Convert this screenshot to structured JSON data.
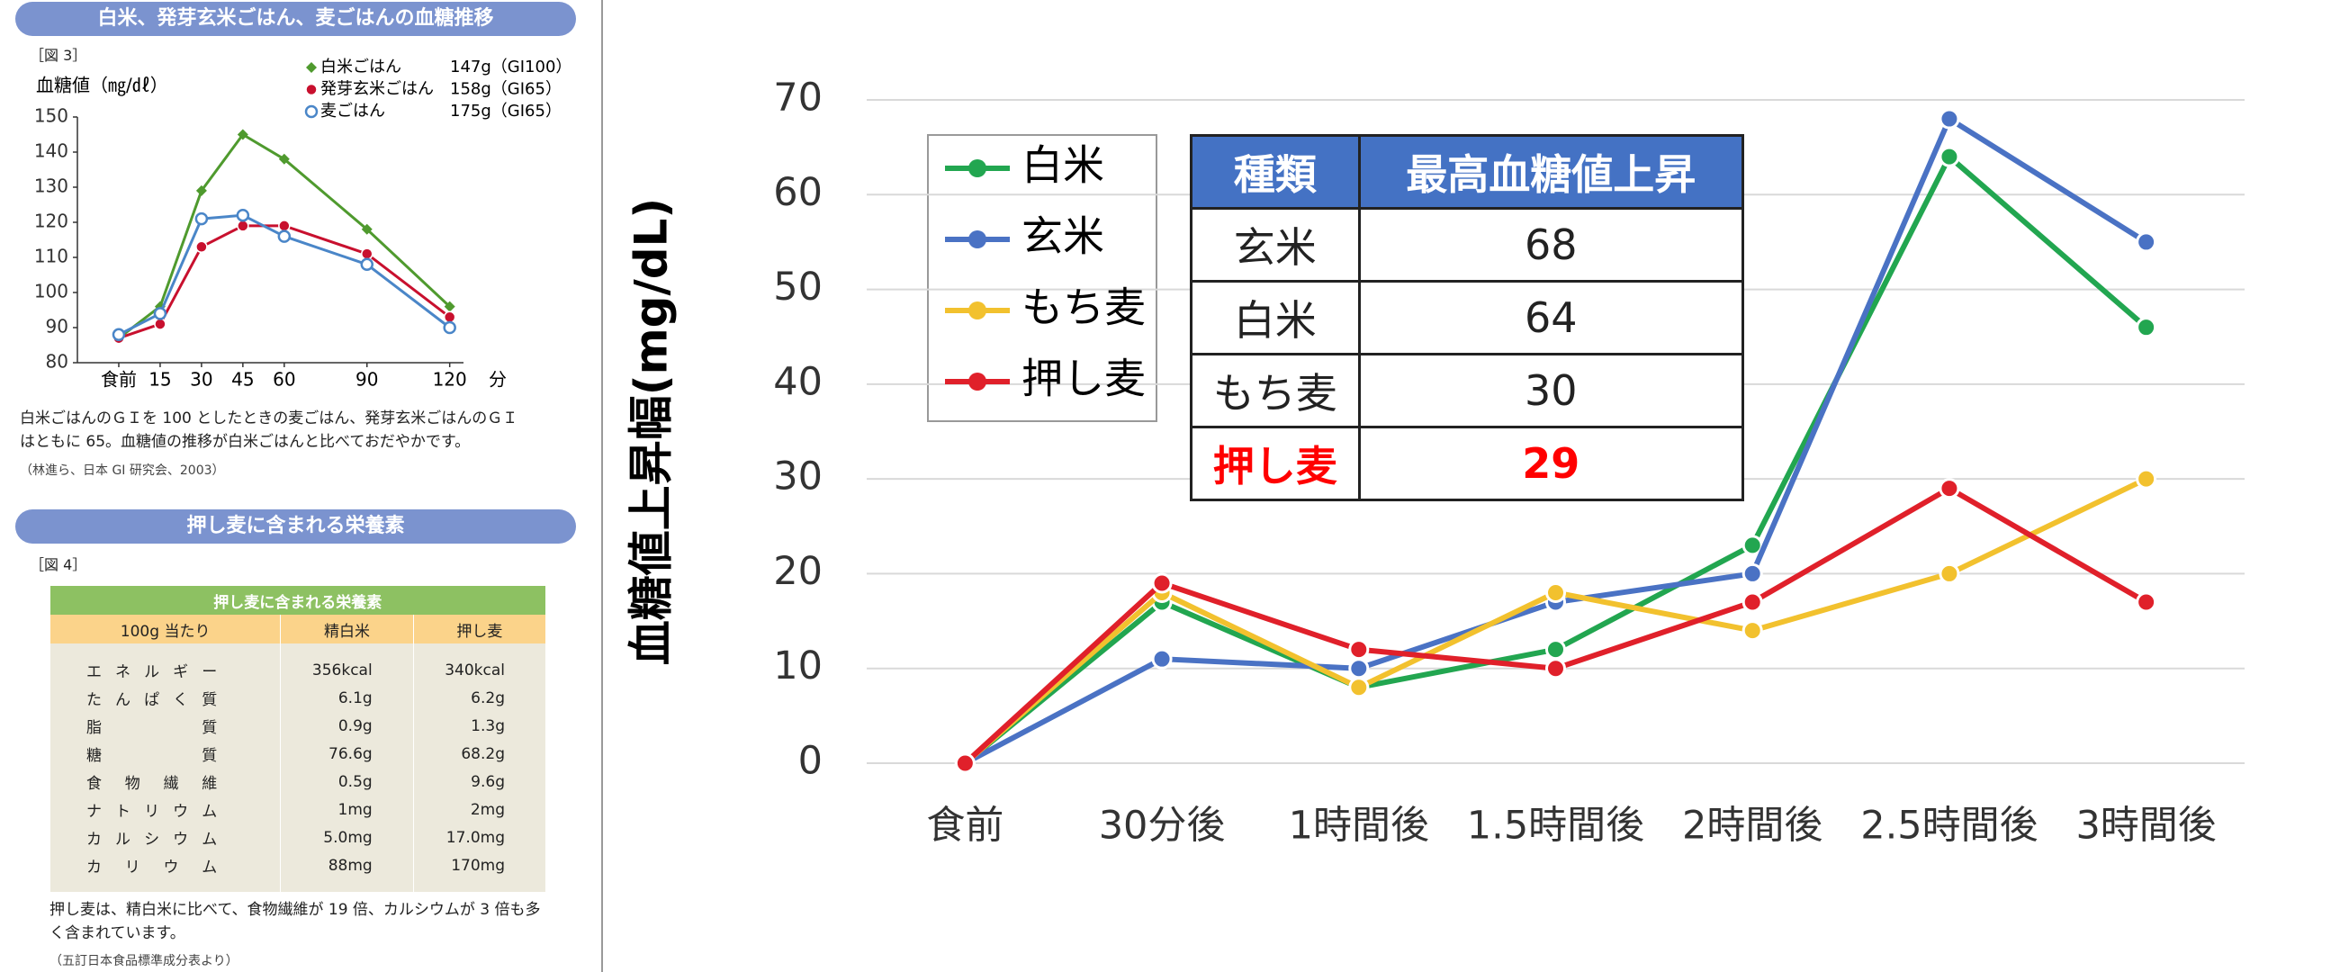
{
  "chart_data": [
    {
      "type": "line",
      "title": "白米、発芽玄米ごはん、麦ごはんの血糖推移",
      "figure_label": "［図 3］",
      "ylabel": "血糖値（㎎/㎗）",
      "xlabel": "分",
      "x": [
        0,
        15,
        30,
        45,
        60,
        90,
        120
      ],
      "xlim": [
        -15,
        125
      ],
      "xticks": [
        {
          "value": 0,
          "label": "食前"
        },
        15,
        30,
        45,
        60,
        90,
        120
      ],
      "ylim": [
        80,
        150
      ],
      "yticks": [
        80,
        90,
        100,
        110,
        120,
        130,
        140,
        150
      ],
      "series": [
        {
          "name": "白米ごはん",
          "note": "147g（GI100）",
          "color": "#4f9a2e",
          "marker": "diamond",
          "values": [
            87,
            96,
            129,
            145,
            138,
            118,
            96
          ]
        },
        {
          "name": "発芽玄米ごはん",
          "note": "158g（GI65）",
          "color": "#c8102e",
          "marker": "circle",
          "values": [
            87,
            91,
            113,
            119,
            119,
            111,
            93
          ]
        },
        {
          "name": "麦ごはん",
          "note": "175g（GI65）",
          "color": "#4a86c8",
          "marker": "ring",
          "values": [
            88,
            94,
            121,
            122,
            116,
            108,
            90
          ]
        }
      ],
      "caption": "白米ごはんのＧＩを 100 としたときの麦ごはん、発芽玄米ごはんのＧＩはともに 65。血糖値の推移が白米ごはんと比べておだやかです。",
      "source": "（林進ら、日本 GI 研究会、2003）"
    },
    {
      "type": "line",
      "ylabel": "血糖値上昇幅(mg/dL)",
      "categories": [
        "食前",
        "30分後",
        "1時間後",
        "1.5時間後",
        "2時間後",
        "2.5時間後",
        "3時間後"
      ],
      "ylim": [
        0,
        70
      ],
      "yticks": [
        0,
        10,
        20,
        30,
        40,
        50,
        60,
        70
      ],
      "grid": true,
      "legend": "upper-left",
      "series": [
        {
          "name": "白米",
          "color": "#22a650",
          "values": [
            0,
            17,
            8,
            12,
            23,
            64,
            46
          ]
        },
        {
          "name": "玄米",
          "color": "#4a72c4",
          "values": [
            0,
            11,
            10,
            17,
            20,
            68,
            55
          ]
        },
        {
          "name": "もち麦",
          "color": "#f2c12e",
          "values": [
            0,
            18,
            8,
            18,
            14,
            20,
            30
          ]
        },
        {
          "name": "押し麦",
          "color": "#e0202a",
          "values": [
            0,
            19,
            12,
            10,
            17,
            29,
            17
          ]
        }
      ],
      "table": {
        "columns": [
          "種類",
          "最高血糖値上昇"
        ],
        "rows": [
          [
            "玄米",
            68
          ],
          [
            "白米",
            64
          ],
          [
            "もち麦",
            30
          ],
          [
            "押し麦",
            29
          ]
        ]
      }
    }
  ],
  "nutrition": {
    "title": "押し麦に含まれる栄養素",
    "figure_label": "［図 4］",
    "table": {
      "title": "押し麦に含まれる栄養素",
      "columns": [
        "100g 当たり",
        "精白米",
        "押し麦"
      ],
      "rows": [
        [
          "エネルギー",
          "356kcal",
          "340kcal"
        ],
        [
          "たんぱく質",
          "6.1g",
          "6.2g"
        ],
        [
          "脂質",
          "0.9g",
          "1.3g"
        ],
        [
          "糖質",
          "76.6g",
          "68.2g"
        ],
        [
          "食物繊維",
          "0.5g",
          "9.6g"
        ],
        [
          "ナトリウム",
          "1mg",
          "2mg"
        ],
        [
          "カルシウム",
          "5.0mg",
          "17.0mg"
        ],
        [
          "カリウム",
          "88mg",
          "170mg"
        ]
      ]
    },
    "caption": "押し麦は、精白米に比べて、食物繊維が 19 倍、カルシウムが 3 倍も多く含まれています。",
    "source": "（五訂日本食品標準成分表より）"
  }
}
